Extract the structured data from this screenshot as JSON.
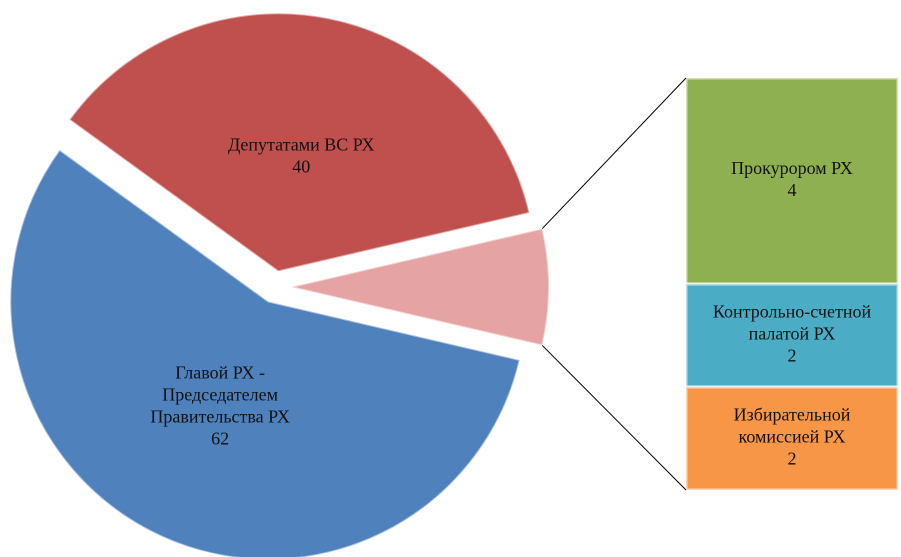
{
  "chart_data": {
    "type": "pie-of-bar",
    "categories": [
      "Главой РХ -\nПредседателем\nПравительства РХ",
      "Депутатами ВС РХ"
    ],
    "values": [
      62,
      40
    ],
    "colors": [
      "#4f81bd",
      "#c0504d"
    ],
    "other_color": "#e6a3a3",
    "bar_categories": [
      "Прокурором РХ",
      "Контрольно-счетной\nпалатой РХ",
      "Избирательной\nкомиссией РХ"
    ],
    "bar_values": [
      4,
      2,
      2
    ],
    "bar_colors": [
      "#8fb050",
      "#4bacc6",
      "#f79646"
    ]
  }
}
